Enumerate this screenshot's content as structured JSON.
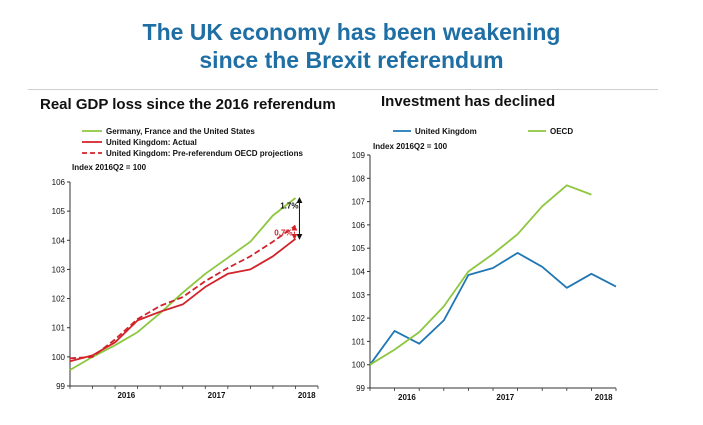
{
  "header": {
    "title_line1": "The UK economy has been weakening",
    "title_line2": "since the Brexit referendum"
  },
  "colors": {
    "title": "#1f6fa5",
    "green": "#8dc63f",
    "red": "#d2232a",
    "blue": "#1f77b4"
  },
  "chart_data": [
    {
      "type": "line",
      "title": "Real GDP loss since the 2016 referendum",
      "ylabel": "Index 2016Q2 = 100",
      "ylim": [
        99,
        106
      ],
      "yticks": [
        99,
        100,
        101,
        102,
        103,
        104,
        105,
        106
      ],
      "xlim": [
        2015.75,
        2018.5
      ],
      "xticks": [
        {
          "label": "2016",
          "x": 2016.0
        },
        {
          "label": "2017",
          "x": 2017.0
        },
        {
          "label": "2018",
          "x": 2018.0
        }
      ],
      "series": [
        {
          "name": "Germany, France and the United States",
          "color": "#8dc63f",
          "dash": false,
          "x": [
            2015.75,
            2016.0,
            2016.25,
            2016.5,
            2016.75,
            2017.0,
            2017.25,
            2017.5,
            2017.75,
            2018.0,
            2018.25
          ],
          "y": [
            99.55,
            100.0,
            100.4,
            100.85,
            101.5,
            102.2,
            102.85,
            103.4,
            103.95,
            104.85,
            105.45
          ]
        },
        {
          "name": "United Kingdom: Actual",
          "color": "#d2232a",
          "dash": false,
          "x": [
            2015.75,
            2016.0,
            2016.25,
            2016.5,
            2016.75,
            2017.0,
            2017.25,
            2017.5,
            2017.75,
            2018.0,
            2018.25
          ],
          "y": [
            99.85,
            100.05,
            100.5,
            101.25,
            101.55,
            101.8,
            102.4,
            102.85,
            103.0,
            103.45,
            104.05
          ]
        },
        {
          "name": "United Kingdom: Pre-referendum OECD projections",
          "color": "#d2232a",
          "dash": true,
          "x": [
            2015.75,
            2016.0,
            2016.25,
            2016.5,
            2016.75,
            2017.0,
            2017.25,
            2017.5,
            2017.75,
            2018.0,
            2018.25
          ],
          "y": [
            99.95,
            100.0,
            100.6,
            101.3,
            101.75,
            102.05,
            102.6,
            103.05,
            103.45,
            103.95,
            104.5
          ]
        }
      ],
      "annotations": [
        {
          "text": "1.7%",
          "color": "#111111"
        },
        {
          "text": "0.7%",
          "color": "#d2232a"
        }
      ]
    },
    {
      "type": "line",
      "title": "Investment has declined",
      "ylabel": "Index 2016Q2 = 100",
      "ylim": [
        99,
        109
      ],
      "yticks": [
        99,
        100,
        101,
        102,
        103,
        104,
        105,
        106,
        107,
        108,
        109
      ],
      "xlim": [
        2016.0,
        2018.5
      ],
      "xticks": [
        {
          "label": "2016",
          "x": 2016.0
        },
        {
          "label": "2017",
          "x": 2017.0
        },
        {
          "label": "2018",
          "x": 2018.0
        }
      ],
      "series": [
        {
          "name": "United Kingdom",
          "color": "#1f77b4",
          "x": [
            2016.0,
            2016.25,
            2016.5,
            2016.75,
            2017.0,
            2017.25,
            2017.5,
            2017.75,
            2018.0,
            2018.25,
            2018.5
          ],
          "y": [
            100.0,
            101.45,
            100.9,
            101.9,
            103.85,
            104.15,
            104.8,
            104.2,
            103.3,
            103.9,
            103.35
          ]
        },
        {
          "name": "OECD",
          "color": "#8dc63f",
          "x": [
            2016.0,
            2016.25,
            2016.5,
            2016.75,
            2017.0,
            2017.25,
            2017.5,
            2017.75,
            2018.0,
            2018.25
          ],
          "y": [
            100.0,
            100.65,
            101.4,
            102.5,
            104.0,
            104.75,
            105.6,
            106.8,
            107.7,
            107.3
          ]
        }
      ]
    }
  ]
}
